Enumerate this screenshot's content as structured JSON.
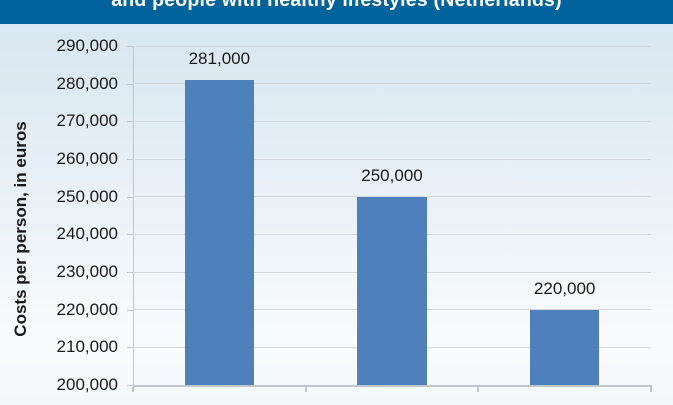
{
  "header": {
    "title": "and people with healthy lifestyles (Netherlands)"
  },
  "colors": {
    "header_bg": "#00639B",
    "title_text": "#FFFFFF",
    "bar": "#4E80BC",
    "gridline": "#D3D8DC",
    "axis": "#BEC7CD",
    "text": "#1A1A1A",
    "bg_top": "#D7E6F1",
    "bg_bottom": "#F9FCFD"
  },
  "chart_data": {
    "type": "bar",
    "title": "and people with healthy lifestyles (Netherlands)",
    "ylabel": "Costs per person, in euros",
    "xlabel": "",
    "values": [
      281000,
      250000,
      220000
    ],
    "data_labels": [
      "281,000",
      "250,000",
      "220,000"
    ],
    "ylim": [
      200000,
      290000
    ],
    "ytick_step": 10000,
    "ytick_labels": [
      "200,000",
      "210,000",
      "220,000",
      "230,000",
      "240,000",
      "250,000",
      "260,000",
      "270,000",
      "280,000",
      "290,000"
    ],
    "categories": [
      "",
      "",
      ""
    ],
    "grid": true,
    "legend": false,
    "bar_width_ratio": 0.4,
    "notes": "x-axis category labels not visible (cropped); chart title partially cropped at top"
  }
}
